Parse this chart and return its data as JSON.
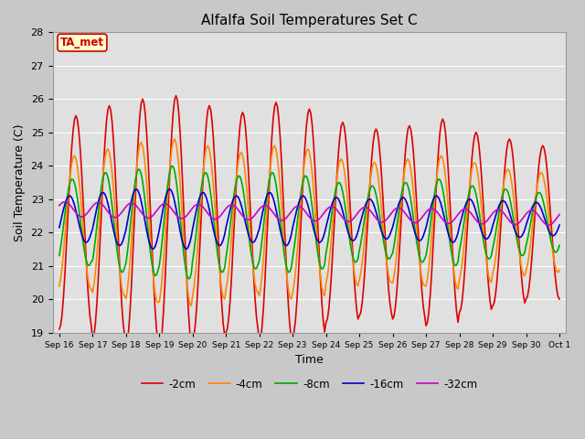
{
  "title": "Alfalfa Soil Temperatures Set C",
  "xlabel": "Time",
  "ylabel": "Soil Temperature (C)",
  "ylim": [
    19.0,
    28.0
  ],
  "yticks": [
    19.0,
    20.0,
    21.0,
    22.0,
    23.0,
    24.0,
    25.0,
    26.0,
    27.0,
    28.0
  ],
  "fig_bg_color": "#c8c8c8",
  "plot_bg_color": "#e0e0e0",
  "grid_color": "#ffffff",
  "annotation_text": "TA_met",
  "annotation_color": "#cc0000",
  "annotation_bg": "#ffffcc",
  "legend_entries": [
    "-2cm",
    "-4cm",
    "-8cm",
    "-16cm",
    "-32cm"
  ],
  "line_colors": [
    "#dd0000",
    "#ff8800",
    "#00aa00",
    "#0000cc",
    "#cc00cc"
  ],
  "line_widths": [
    1.2,
    1.2,
    1.2,
    1.2,
    1.2
  ],
  "x_tick_labels": [
    "Sep 16",
    "Sep 17",
    "Sep 18",
    "Sep 19",
    "Sep 20",
    "Sep 21",
    "Sep 22",
    "Sep 23",
    "Sep 24",
    "Sep 25",
    "Sep 26",
    "Sep 27",
    "Sep 28",
    "Sep 29",
    "Sep 30",
    "Oct 1"
  ],
  "amplitudes_2cm": [
    3.2,
    3.5,
    3.7,
    3.8,
    3.5,
    3.3,
    3.6,
    3.4,
    3.0,
    2.8,
    2.9,
    3.1,
    2.7,
    2.5,
    2.3
  ],
  "amplitudes_4cm": [
    2.0,
    2.2,
    2.4,
    2.5,
    2.3,
    2.1,
    2.3,
    2.2,
    1.9,
    1.8,
    1.9,
    2.0,
    1.8,
    1.6,
    1.5
  ],
  "amplitudes_8cm": [
    1.3,
    1.5,
    1.6,
    1.7,
    1.5,
    1.4,
    1.5,
    1.4,
    1.2,
    1.1,
    1.2,
    1.3,
    1.1,
    1.0,
    0.9
  ],
  "amplitudes_16cm": [
    0.7,
    0.8,
    0.9,
    0.9,
    0.8,
    0.7,
    0.8,
    0.7,
    0.65,
    0.6,
    0.65,
    0.7,
    0.6,
    0.55,
    0.5
  ],
  "mean_2cm": 22.3,
  "mean_4cm": 22.3,
  "mean_8cm": 22.3,
  "mean_16cm": 22.4,
  "mean_32cm": 22.7,
  "amp_32cm": 0.22,
  "phase_2cm": -1.57,
  "phase_4cm": -1.27,
  "phase_8cm": -0.87,
  "phase_16cm": -0.37,
  "phase_32cm": 0.5
}
